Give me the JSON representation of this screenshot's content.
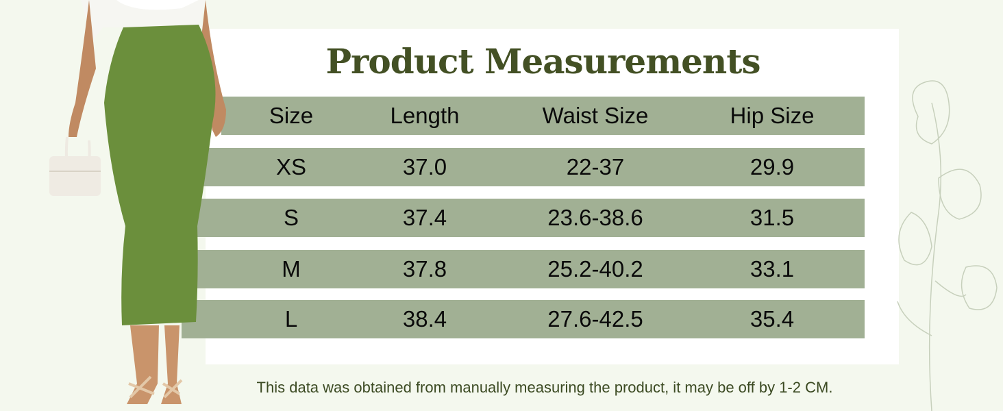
{
  "title": "Product Measurements",
  "table": {
    "headers": [
      "Size",
      "Length",
      "Waist Size",
      "Hip Size"
    ],
    "rows": [
      [
        "XS",
        "37.0",
        "22-37",
        "29.9"
      ],
      [
        "S",
        "37.4",
        "23.6-38.6",
        "31.5"
      ],
      [
        "M",
        "37.8",
        "25.2-40.2",
        "33.1"
      ],
      [
        "L",
        "38.4",
        "27.6-42.5",
        "35.4"
      ]
    ]
  },
  "footer_note": "This data was obtained from manually measuring the product, it may be off by 1-2 CM.",
  "colors": {
    "background": "#f4f8ee",
    "band": "#a1b094",
    "title": "#435024",
    "skirt": "#6b8f3c"
  }
}
